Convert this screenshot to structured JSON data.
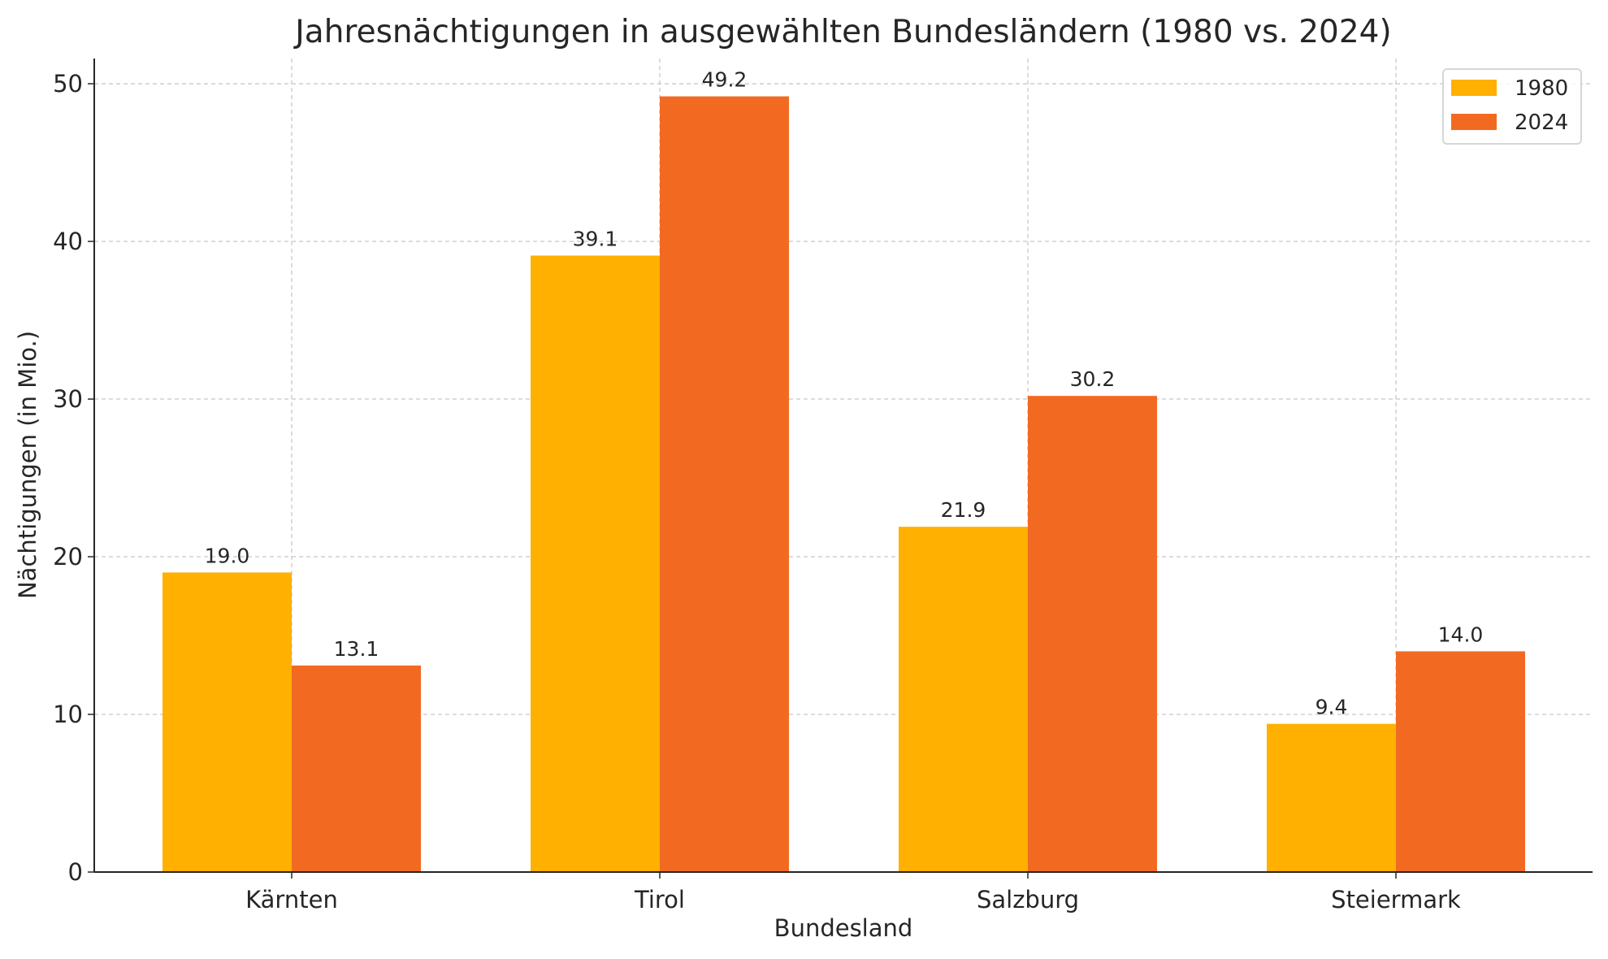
{
  "chart_data": {
    "type": "bar",
    "title": "Jahresnächtigungen in ausgewählten Bundesländern (1980 vs. 2024)",
    "xlabel": "Bundesland",
    "ylabel": "Nächtigungen (in Mio.)",
    "categories": [
      "Kärnten",
      "Tirol",
      "Salzburg",
      "Steiermark"
    ],
    "series": [
      {
        "name": "1980",
        "values": [
          19.0,
          39.1,
          21.9,
          9.4
        ],
        "color": "#FFB000"
      },
      {
        "name": "2024",
        "values": [
          13.1,
          49.2,
          30.2,
          14.0
        ],
        "color": "#F26A21"
      }
    ],
    "ylim": [
      0,
      51.6
    ],
    "yticks": [
      0,
      10,
      20,
      30,
      40,
      50
    ],
    "grid": true,
    "legend": "top-right",
    "data_labels": true
  }
}
